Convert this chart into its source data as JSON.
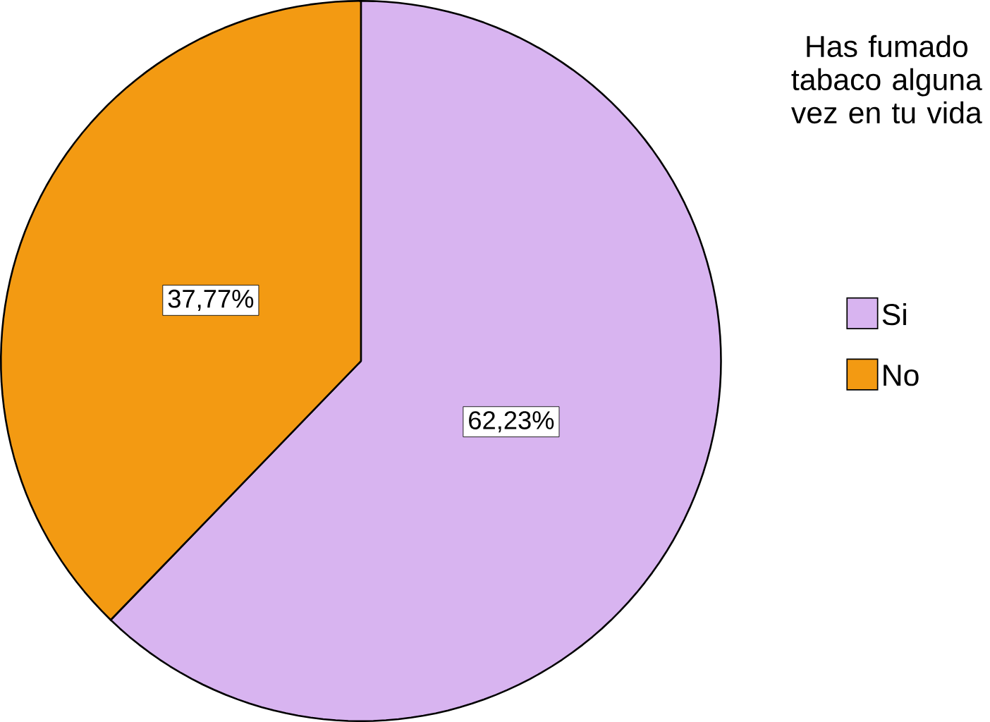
{
  "chart_data": {
    "type": "pie",
    "legend_title": "Has fumado tabaco alguna vez en tu vida",
    "legend": "right",
    "categories": [
      "Si",
      "No"
    ],
    "values": [
      62.23,
      37.77
    ],
    "colors": [
      "#d8b4f0",
      "#f39a12"
    ],
    "value_labels": [
      "62,23%",
      "37,77%"
    ]
  }
}
